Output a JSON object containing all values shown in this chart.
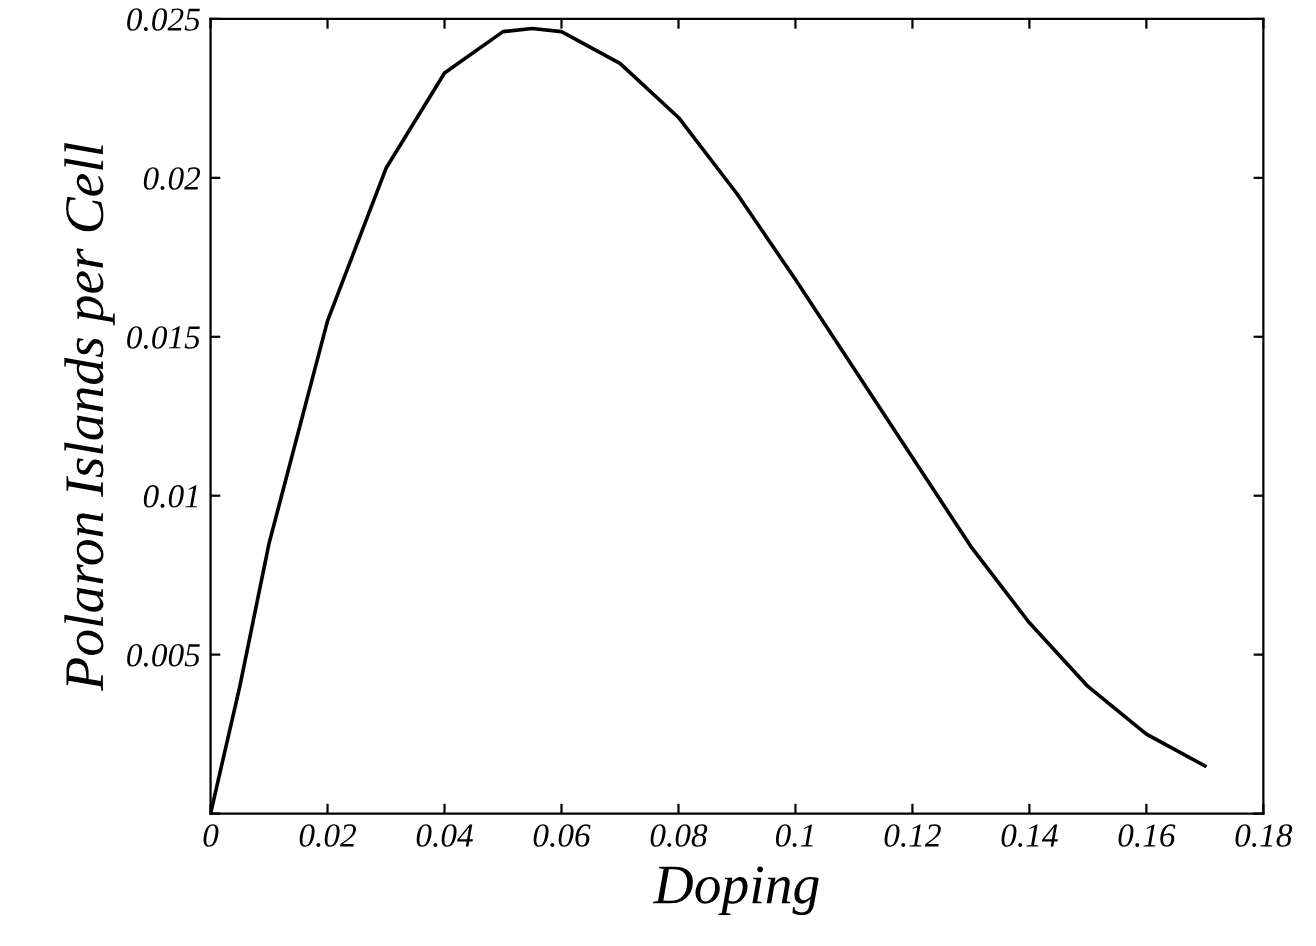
{
  "chart_data": {
    "type": "line",
    "xlabel": "Doping",
    "ylabel": "Polaron Islands per Cell",
    "x": [
      0,
      0.005,
      0.01,
      0.02,
      0.03,
      0.04,
      0.05,
      0.055,
      0.06,
      0.07,
      0.08,
      0.09,
      0.1,
      0.11,
      0.12,
      0.13,
      0.14,
      0.15,
      0.16,
      0.17
    ],
    "series": [
      {
        "color": "#000000",
        "values": [
          0,
          0.004,
          0.0085,
          0.0155,
          0.0203,
          0.0233,
          0.0246,
          0.0247,
          0.0246,
          0.0236,
          0.0219,
          0.0195,
          0.0168,
          0.014,
          0.0112,
          0.0084,
          0.006,
          0.004,
          0.0025,
          0.0015
        ]
      }
    ],
    "xlim": [
      0,
      0.18
    ],
    "ylim": [
      0,
      0.025
    ],
    "xticks": [
      0,
      0.02,
      0.04,
      0.06,
      0.08,
      0.1,
      0.12,
      0.14,
      0.16,
      0.18
    ],
    "yticks": [
      {
        "value": 0,
        "label": null
      },
      0.005,
      0.01,
      0.015,
      0.02,
      0.025
    ],
    "grid": false,
    "marker": "none",
    "line_style": "solid"
  }
}
